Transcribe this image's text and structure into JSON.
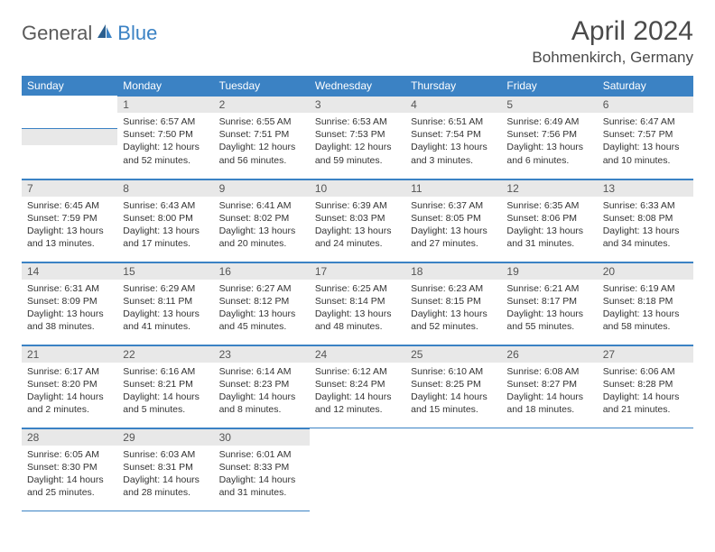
{
  "logo": {
    "part1": "General",
    "part2": "Blue"
  },
  "title": "April 2024",
  "location": "Bohmenkirch, Germany",
  "dayHeaders": [
    "Sunday",
    "Monday",
    "Tuesday",
    "Wednesday",
    "Thursday",
    "Friday",
    "Saturday"
  ],
  "colors": {
    "header_bg": "#3b82c4",
    "header_text": "#ffffff",
    "daynum_bg": "#e8e8e8",
    "border": "#3b82c4",
    "logo_gray": "#5a5a5a",
    "logo_blue": "#3b82c4"
  },
  "weeks": [
    [
      null,
      {
        "n": "1",
        "sr": "Sunrise: 6:57 AM",
        "ss": "Sunset: 7:50 PM",
        "d1": "Daylight: 12 hours",
        "d2": "and 52 minutes."
      },
      {
        "n": "2",
        "sr": "Sunrise: 6:55 AM",
        "ss": "Sunset: 7:51 PM",
        "d1": "Daylight: 12 hours",
        "d2": "and 56 minutes."
      },
      {
        "n": "3",
        "sr": "Sunrise: 6:53 AM",
        "ss": "Sunset: 7:53 PM",
        "d1": "Daylight: 12 hours",
        "d2": "and 59 minutes."
      },
      {
        "n": "4",
        "sr": "Sunrise: 6:51 AM",
        "ss": "Sunset: 7:54 PM",
        "d1": "Daylight: 13 hours",
        "d2": "and 3 minutes."
      },
      {
        "n": "5",
        "sr": "Sunrise: 6:49 AM",
        "ss": "Sunset: 7:56 PM",
        "d1": "Daylight: 13 hours",
        "d2": "and 6 minutes."
      },
      {
        "n": "6",
        "sr": "Sunrise: 6:47 AM",
        "ss": "Sunset: 7:57 PM",
        "d1": "Daylight: 13 hours",
        "d2": "and 10 minutes."
      }
    ],
    [
      {
        "n": "7",
        "sr": "Sunrise: 6:45 AM",
        "ss": "Sunset: 7:59 PM",
        "d1": "Daylight: 13 hours",
        "d2": "and 13 minutes."
      },
      {
        "n": "8",
        "sr": "Sunrise: 6:43 AM",
        "ss": "Sunset: 8:00 PM",
        "d1": "Daylight: 13 hours",
        "d2": "and 17 minutes."
      },
      {
        "n": "9",
        "sr": "Sunrise: 6:41 AM",
        "ss": "Sunset: 8:02 PM",
        "d1": "Daylight: 13 hours",
        "d2": "and 20 minutes."
      },
      {
        "n": "10",
        "sr": "Sunrise: 6:39 AM",
        "ss": "Sunset: 8:03 PM",
        "d1": "Daylight: 13 hours",
        "d2": "and 24 minutes."
      },
      {
        "n": "11",
        "sr": "Sunrise: 6:37 AM",
        "ss": "Sunset: 8:05 PM",
        "d1": "Daylight: 13 hours",
        "d2": "and 27 minutes."
      },
      {
        "n": "12",
        "sr": "Sunrise: 6:35 AM",
        "ss": "Sunset: 8:06 PM",
        "d1": "Daylight: 13 hours",
        "d2": "and 31 minutes."
      },
      {
        "n": "13",
        "sr": "Sunrise: 6:33 AM",
        "ss": "Sunset: 8:08 PM",
        "d1": "Daylight: 13 hours",
        "d2": "and 34 minutes."
      }
    ],
    [
      {
        "n": "14",
        "sr": "Sunrise: 6:31 AM",
        "ss": "Sunset: 8:09 PM",
        "d1": "Daylight: 13 hours",
        "d2": "and 38 minutes."
      },
      {
        "n": "15",
        "sr": "Sunrise: 6:29 AM",
        "ss": "Sunset: 8:11 PM",
        "d1": "Daylight: 13 hours",
        "d2": "and 41 minutes."
      },
      {
        "n": "16",
        "sr": "Sunrise: 6:27 AM",
        "ss": "Sunset: 8:12 PM",
        "d1": "Daylight: 13 hours",
        "d2": "and 45 minutes."
      },
      {
        "n": "17",
        "sr": "Sunrise: 6:25 AM",
        "ss": "Sunset: 8:14 PM",
        "d1": "Daylight: 13 hours",
        "d2": "and 48 minutes."
      },
      {
        "n": "18",
        "sr": "Sunrise: 6:23 AM",
        "ss": "Sunset: 8:15 PM",
        "d1": "Daylight: 13 hours",
        "d2": "and 52 minutes."
      },
      {
        "n": "19",
        "sr": "Sunrise: 6:21 AM",
        "ss": "Sunset: 8:17 PM",
        "d1": "Daylight: 13 hours",
        "d2": "and 55 minutes."
      },
      {
        "n": "20",
        "sr": "Sunrise: 6:19 AM",
        "ss": "Sunset: 8:18 PM",
        "d1": "Daylight: 13 hours",
        "d2": "and 58 minutes."
      }
    ],
    [
      {
        "n": "21",
        "sr": "Sunrise: 6:17 AM",
        "ss": "Sunset: 8:20 PM",
        "d1": "Daylight: 14 hours",
        "d2": "and 2 minutes."
      },
      {
        "n": "22",
        "sr": "Sunrise: 6:16 AM",
        "ss": "Sunset: 8:21 PM",
        "d1": "Daylight: 14 hours",
        "d2": "and 5 minutes."
      },
      {
        "n": "23",
        "sr": "Sunrise: 6:14 AM",
        "ss": "Sunset: 8:23 PM",
        "d1": "Daylight: 14 hours",
        "d2": "and 8 minutes."
      },
      {
        "n": "24",
        "sr": "Sunrise: 6:12 AM",
        "ss": "Sunset: 8:24 PM",
        "d1": "Daylight: 14 hours",
        "d2": "and 12 minutes."
      },
      {
        "n": "25",
        "sr": "Sunrise: 6:10 AM",
        "ss": "Sunset: 8:25 PM",
        "d1": "Daylight: 14 hours",
        "d2": "and 15 minutes."
      },
      {
        "n": "26",
        "sr": "Sunrise: 6:08 AM",
        "ss": "Sunset: 8:27 PM",
        "d1": "Daylight: 14 hours",
        "d2": "and 18 minutes."
      },
      {
        "n": "27",
        "sr": "Sunrise: 6:06 AM",
        "ss": "Sunset: 8:28 PM",
        "d1": "Daylight: 14 hours",
        "d2": "and 21 minutes."
      }
    ],
    [
      {
        "n": "28",
        "sr": "Sunrise: 6:05 AM",
        "ss": "Sunset: 8:30 PM",
        "d1": "Daylight: 14 hours",
        "d2": "and 25 minutes."
      },
      {
        "n": "29",
        "sr": "Sunrise: 6:03 AM",
        "ss": "Sunset: 8:31 PM",
        "d1": "Daylight: 14 hours",
        "d2": "and 28 minutes."
      },
      {
        "n": "30",
        "sr": "Sunrise: 6:01 AM",
        "ss": "Sunset: 8:33 PM",
        "d1": "Daylight: 14 hours",
        "d2": "and 31 minutes."
      },
      null,
      null,
      null,
      null
    ]
  ]
}
